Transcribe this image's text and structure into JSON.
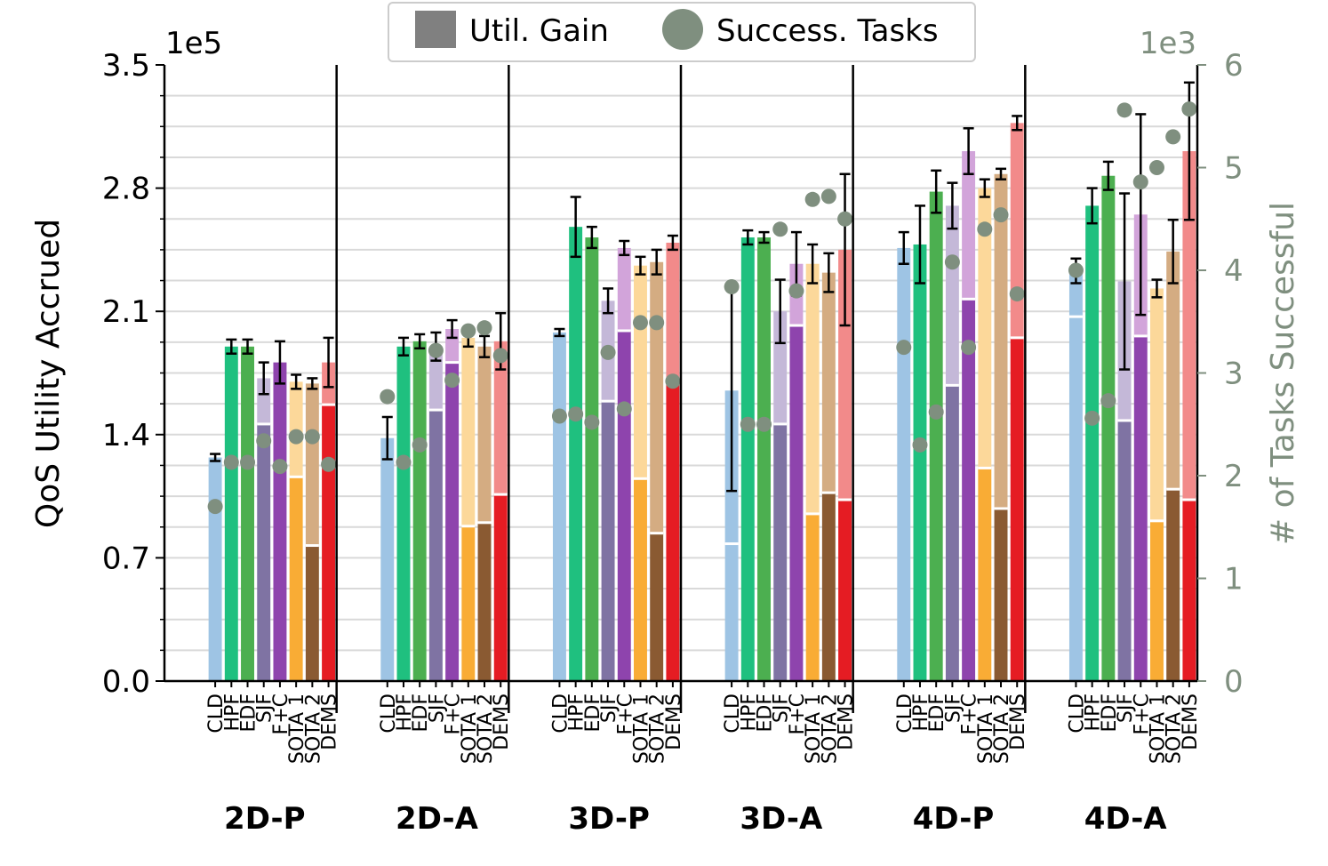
{
  "chart_data": {
    "type": "bar",
    "ylabel": "QoS Utility Accrued",
    "ylabel_right": "# of Tasks Successful",
    "y_scale_label": "1e5",
    "y_right_scale_label": "1e3",
    "ylim": [
      0,
      3.5
    ],
    "ylim_right": [
      0,
      6
    ],
    "yticks": [
      "0.0",
      "0.7",
      "1.4",
      "2.1",
      "2.8",
      "3.5"
    ],
    "yticks_right": [
      "0",
      "1",
      "2",
      "3",
      "4",
      "5",
      "6"
    ],
    "legend": {
      "position": "top-center",
      "bar_label": "Util. Gain",
      "dot_label": "Success. Tasks"
    },
    "methods": [
      "CLD",
      "HPF",
      "EDF",
      "SJF",
      "F+C",
      "SOTA 1",
      "SOTA 2",
      "DEMS"
    ],
    "method_colors": {
      "base": [
        "#9ec4e4",
        "#1fc07f",
        "#4caf50",
        "#7f73a3",
        "#8e44ad",
        "#f9ac35",
        "#8a5a32",
        "#e51c23"
      ],
      "gain": [
        "#9ec4e4",
        "#1fc07f",
        "#4caf50",
        "#c4b8d8",
        "#d2a4da",
        "#fcd89a",
        "#d4ac82",
        "#f28a8a"
      ]
    },
    "dot_color": "#7f8f7f",
    "groups": [
      {
        "name": "2D-P",
        "bars": [
          {
            "method": "CLD",
            "base": 1.27,
            "total": 1.27,
            "err": 0.02,
            "success": 1.7
          },
          {
            "method": "HPF",
            "base": 1.9,
            "total": 1.9,
            "err": 0.04,
            "success": 2.13
          },
          {
            "method": "EDF",
            "base": 1.9,
            "total": 1.9,
            "err": 0.04,
            "success": 2.13
          },
          {
            "method": "SJF",
            "base": 1.46,
            "total": 1.72,
            "err": 0.09,
            "success": 2.34
          },
          {
            "method": "F+C",
            "base": 1.81,
            "total": 1.81,
            "err": 0.12,
            "success": 2.09
          },
          {
            "method": "SOTA 1",
            "base": 1.16,
            "total": 1.7,
            "err": 0.04,
            "success": 2.38
          },
          {
            "method": "SOTA 2",
            "base": 0.77,
            "total": 1.69,
            "err": 0.03,
            "success": 2.38
          },
          {
            "method": "DEMS",
            "base": 1.57,
            "total": 1.81,
            "err": 0.14,
            "success": 2.11
          }
        ]
      },
      {
        "name": "2D-A",
        "bars": [
          {
            "method": "CLD",
            "base": 1.38,
            "total": 1.38,
            "err": 0.12,
            "success": 2.77
          },
          {
            "method": "HPF",
            "base": 1.9,
            "total": 1.9,
            "err": 0.05,
            "success": 2.13
          },
          {
            "method": "EDF",
            "base": 1.93,
            "total": 1.93,
            "err": 0.04,
            "success": 2.3
          },
          {
            "method": "SJF",
            "base": 1.54,
            "total": 1.9,
            "err": 0.08,
            "success": 3.22
          },
          {
            "method": "F+C",
            "base": 1.81,
            "total": 2.0,
            "err": 0.05,
            "success": 2.93
          },
          {
            "method": "SOTA 1",
            "base": 0.88,
            "total": 1.95,
            "err": 0.05,
            "success": 3.41
          },
          {
            "method": "SOTA 2",
            "base": 0.9,
            "total": 1.9,
            "err": 0.06,
            "success": 3.44
          },
          {
            "method": "DEMS",
            "base": 1.06,
            "total": 1.93,
            "err": 0.16,
            "success": 3.17
          }
        ]
      },
      {
        "name": "3D-P",
        "bars": [
          {
            "method": "CLD",
            "base": 1.98,
            "total": 1.98,
            "err": 0.02,
            "success": 2.58
          },
          {
            "method": "HPF",
            "base": 2.58,
            "total": 2.58,
            "err": 0.17,
            "success": 2.6
          },
          {
            "method": "EDF",
            "base": 2.52,
            "total": 2.52,
            "err": 0.06,
            "success": 2.52
          },
          {
            "method": "SJF",
            "base": 1.59,
            "total": 2.16,
            "err": 0.07,
            "success": 3.2
          },
          {
            "method": "F+C",
            "base": 1.99,
            "total": 2.46,
            "err": 0.04,
            "success": 2.65
          },
          {
            "method": "SOTA 1",
            "base": 1.15,
            "total": 2.36,
            "err": 0.05,
            "success": 3.49
          },
          {
            "method": "SOTA 2",
            "base": 0.84,
            "total": 2.38,
            "err": 0.07,
            "success": 3.49
          },
          {
            "method": "DEMS",
            "base": 1.71,
            "total": 2.49,
            "err": 0.04,
            "success": 2.92
          }
        ]
      },
      {
        "name": "3D-A",
        "bars": [
          {
            "method": "CLD",
            "base": 0.78,
            "total": 1.65,
            "err": 0.57,
            "success": 3.84
          },
          {
            "method": "HPF",
            "base": 2.52,
            "total": 2.52,
            "err": 0.04,
            "success": 2.5
          },
          {
            "method": "EDF",
            "base": 2.52,
            "total": 2.52,
            "err": 0.03,
            "success": 2.5
          },
          {
            "method": "SJF",
            "base": 1.46,
            "total": 2.1,
            "err": 0.18,
            "success": 4.4
          },
          {
            "method": "F+C",
            "base": 2.02,
            "total": 2.37,
            "err": 0.18,
            "success": 3.8
          },
          {
            "method": "SOTA 1",
            "base": 0.95,
            "total": 2.37,
            "err": 0.11,
            "success": 4.69
          },
          {
            "method": "SOTA 2",
            "base": 1.07,
            "total": 2.32,
            "err": 0.11,
            "success": 4.72
          },
          {
            "method": "DEMS",
            "base": 1.03,
            "total": 2.45,
            "err": 0.43,
            "success": 4.5
          }
        ]
      },
      {
        "name": "4D-P",
        "bars": [
          {
            "method": "CLD",
            "base": 2.46,
            "total": 2.46,
            "err": 0.09,
            "success": 3.25
          },
          {
            "method": "HPF",
            "base": 2.48,
            "total": 2.48,
            "err": 0.22,
            "success": 2.3
          },
          {
            "method": "EDF",
            "base": 2.78,
            "total": 2.78,
            "err": 0.12,
            "success": 2.62
          },
          {
            "method": "SJF",
            "base": 1.68,
            "total": 2.7,
            "err": 0.13,
            "success": 4.08
          },
          {
            "method": "F+C",
            "base": 2.17,
            "total": 3.01,
            "err": 0.13,
            "success": 3.25
          },
          {
            "method": "SOTA 1",
            "base": 1.21,
            "total": 2.8,
            "err": 0.05,
            "success": 4.4
          },
          {
            "method": "SOTA 2",
            "base": 0.98,
            "total": 2.88,
            "err": 0.03,
            "success": 4.54
          },
          {
            "method": "DEMS",
            "base": 1.95,
            "total": 3.17,
            "err": 0.04,
            "success": 3.77
          }
        ]
      },
      {
        "name": "4D-A",
        "bars": [
          {
            "method": "CLD",
            "base": 2.07,
            "total": 2.33,
            "err": 0.07,
            "success": 4.0
          },
          {
            "method": "HPF",
            "base": 2.7,
            "total": 2.7,
            "err": 0.1,
            "success": 2.56
          },
          {
            "method": "EDF",
            "base": 2.87,
            "total": 2.87,
            "err": 0.08,
            "success": 2.73
          },
          {
            "method": "SJF",
            "base": 1.48,
            "total": 2.27,
            "err": 0.5,
            "success": 5.56
          },
          {
            "method": "F+C",
            "base": 1.96,
            "total": 2.65,
            "err": 0.57,
            "success": 4.86
          },
          {
            "method": "SOTA 1",
            "base": 0.91,
            "total": 2.23,
            "err": 0.05,
            "success": 5.0
          },
          {
            "method": "SOTA 2",
            "base": 1.09,
            "total": 2.44,
            "err": 0.18,
            "success": 5.3
          },
          {
            "method": "DEMS",
            "base": 1.03,
            "total": 3.01,
            "err": 0.39,
            "success": 5.57
          }
        ]
      }
    ]
  }
}
